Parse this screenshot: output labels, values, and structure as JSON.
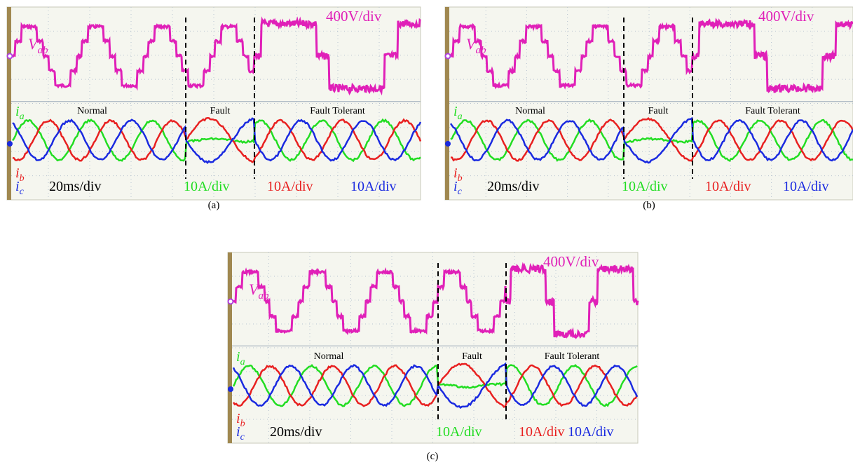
{
  "panels": [
    {
      "label": "(a)",
      "voltage_scale": "400V/div",
      "voltage_symbol": "V",
      "voltage_sub": "ab",
      "current_symbol": "i",
      "current_subs": [
        "a",
        "b",
        "c"
      ],
      "regions": [
        "Normal",
        "Fault",
        "Fault Tolerant"
      ],
      "time_scale": "20ms/div",
      "current_scales": [
        "10A/div",
        "10A/div",
        "10A/div"
      ]
    },
    {
      "label": "(b)",
      "voltage_scale": "400V/div",
      "voltage_symbol": "V",
      "voltage_sub": "ab",
      "current_symbol": "i",
      "current_subs": [
        "a",
        "b",
        "c"
      ],
      "regions": [
        "Normal",
        "Fault",
        "Fault Tolerant"
      ],
      "time_scale": "20ms/div",
      "current_scales": [
        "10A/div",
        "10A/div",
        "10A/div"
      ]
    },
    {
      "label": "(c)",
      "voltage_scale": "400V/div",
      "voltage_symbol": "V",
      "voltage_sub": "ab",
      "current_symbol": "i",
      "current_subs": [
        "a",
        "b",
        "c"
      ],
      "regions": [
        "Normal",
        "Fault",
        "Fault Tolerant"
      ],
      "time_scale": "20ms/div",
      "current_scales": [
        "10A/div",
        "10A/div",
        "10A/div"
      ]
    }
  ]
}
